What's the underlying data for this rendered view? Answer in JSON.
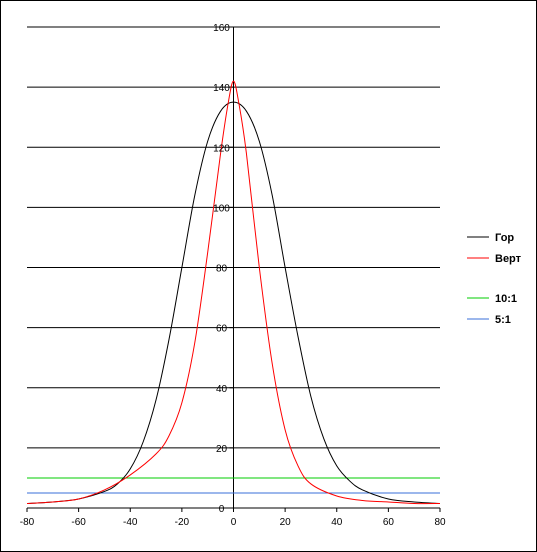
{
  "chart_data": {
    "type": "line",
    "xlim": [
      -80,
      80
    ],
    "ylim": [
      0,
      160
    ],
    "x_ticks": [
      "-80",
      "-60",
      "-40",
      "-20",
      "0",
      "20",
      "40",
      "60",
      "80"
    ],
    "y_ticks": [
      "0",
      "20",
      "40",
      "60",
      "80",
      "100",
      "120",
      "140",
      "160"
    ],
    "grid": "horizontal",
    "legend_position": "right",
    "series": [
      {
        "name": "Гор",
        "color": "#000000",
        "points": [
          [
            -80,
            1.5
          ],
          [
            -70,
            2
          ],
          [
            -60,
            3
          ],
          [
            -50,
            5.5
          ],
          [
            -45,
            8
          ],
          [
            -40,
            13
          ],
          [
            -35,
            22
          ],
          [
            -30,
            36
          ],
          [
            -25,
            56
          ],
          [
            -20,
            80
          ],
          [
            -15,
            104
          ],
          [
            -10,
            122
          ],
          [
            -5,
            132
          ],
          [
            0,
            135
          ],
          [
            5,
            132
          ],
          [
            10,
            122
          ],
          [
            15,
            104
          ],
          [
            20,
            80
          ],
          [
            25,
            57
          ],
          [
            30,
            37
          ],
          [
            35,
            23
          ],
          [
            40,
            14
          ],
          [
            45,
            9
          ],
          [
            50,
            6
          ],
          [
            60,
            3
          ],
          [
            70,
            2
          ],
          [
            80,
            1.5
          ]
        ]
      },
      {
        "name": "Верт",
        "color": "#ff0000",
        "points": [
          [
            -80,
            1.5
          ],
          [
            -70,
            2
          ],
          [
            -60,
            3
          ],
          [
            -50,
            6
          ],
          [
            -40,
            11
          ],
          [
            -30,
            18
          ],
          [
            -25,
            24
          ],
          [
            -20,
            35
          ],
          [
            -15,
            55
          ],
          [
            -10,
            85
          ],
          [
            -5,
            118
          ],
          [
            -2,
            135
          ],
          [
            0,
            142
          ],
          [
            2,
            135
          ],
          [
            5,
            118
          ],
          [
            10,
            80
          ],
          [
            15,
            48
          ],
          [
            20,
            26
          ],
          [
            25,
            14
          ],
          [
            30,
            8
          ],
          [
            40,
            4
          ],
          [
            50,
            2.5
          ],
          [
            60,
            2
          ],
          [
            70,
            1.5
          ],
          [
            80,
            1.5
          ]
        ]
      },
      {
        "name": "10:1",
        "color": "#00cc00",
        "points": [
          [
            -80,
            10
          ],
          [
            80,
            10
          ]
        ]
      },
      {
        "name": "5:1",
        "color": "#3a6fd8",
        "points": [
          [
            -80,
            5
          ],
          [
            80,
            5
          ]
        ]
      }
    ]
  }
}
